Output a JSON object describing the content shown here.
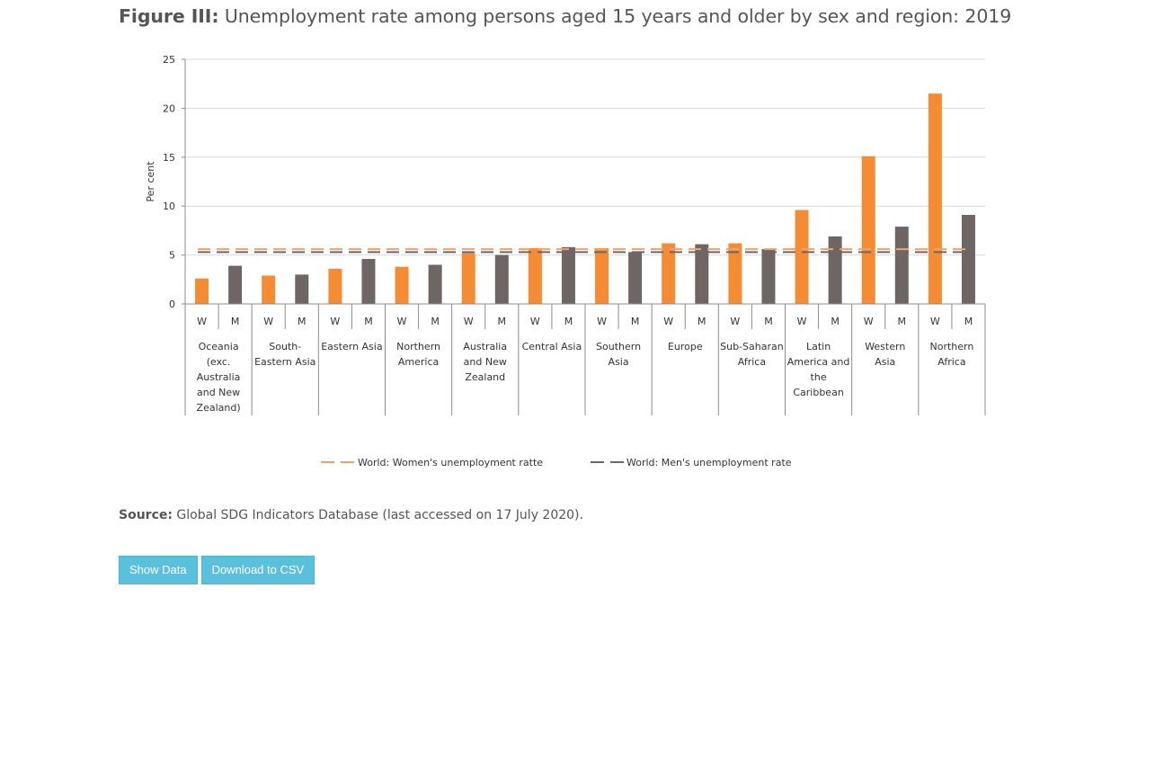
{
  "figure": {
    "label": "Figure III:",
    "title": "Unemployment rate among persons aged 15 years and older by sex and region: 2019"
  },
  "source": {
    "label": "Source:",
    "text": "Global SDG Indicators Database (last accessed on 17 July 2020)."
  },
  "buttons": {
    "show_data": "Show Data",
    "download_csv": "Download to CSV"
  },
  "colors": {
    "women": "#f58b32",
    "men": "#6d6664",
    "women_line": "#f5a065",
    "men_line": "#6d6664",
    "grid": "#d9d9d9",
    "axis": "#8c8c8c"
  },
  "chart_data": {
    "type": "bar",
    "title": "",
    "ylabel": "Per cent",
    "xlabel": "",
    "ylim": [
      0,
      25
    ],
    "yticks": [
      0,
      5,
      10,
      15,
      20,
      25
    ],
    "grid": true,
    "legend_position": "bottom",
    "sub_labels": [
      "W",
      "M"
    ],
    "categories": [
      [
        "Oceania",
        "(exc.",
        "Australia",
        "and New",
        "Zealand)"
      ],
      [
        "South-",
        "Eastern Asia"
      ],
      [
        "Eastern Asia"
      ],
      [
        "Northern",
        "America"
      ],
      [
        "Australia",
        "and New",
        "Zealand"
      ],
      [
        "Central Asia"
      ],
      [
        "Southern",
        "Asia"
      ],
      [
        "Europe"
      ],
      [
        "Sub-Saharan",
        "Africa"
      ],
      [
        "Latin",
        "America and",
        "the",
        "Caribbean"
      ],
      [
        "Western",
        "Asia"
      ],
      [
        "Northern",
        "Africa"
      ]
    ],
    "series": [
      {
        "name": "W",
        "values": [
          2.6,
          2.9,
          3.6,
          3.8,
          5.2,
          5.7,
          5.7,
          6.2,
          6.2,
          9.6,
          15.1,
          21.5
        ]
      },
      {
        "name": "M",
        "values": [
          3.9,
          3.0,
          4.6,
          4.0,
          5.0,
          5.8,
          5.3,
          6.1,
          5.6,
          6.9,
          7.9,
          9.1
        ]
      }
    ],
    "reference_lines": [
      {
        "name": "World: Women's unemployment ratte",
        "value": 5.6
      },
      {
        "name": "World: Men's unemployment rate",
        "value": 5.3
      }
    ]
  }
}
